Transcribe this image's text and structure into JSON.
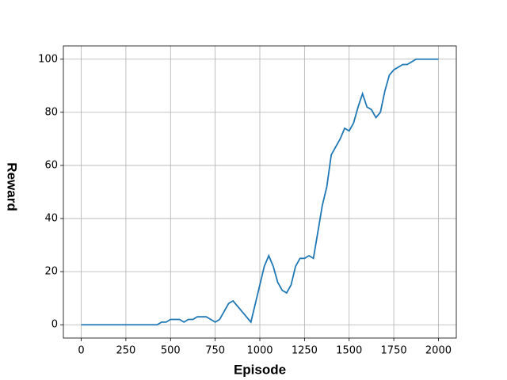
{
  "chart_data": {
    "type": "line",
    "xlabel": "Episode",
    "ylabel": "Reward",
    "x": [
      0,
      25,
      50,
      75,
      100,
      125,
      150,
      175,
      200,
      225,
      250,
      275,
      300,
      325,
      350,
      375,
      400,
      425,
      450,
      475,
      500,
      525,
      550,
      575,
      600,
      625,
      650,
      675,
      700,
      725,
      750,
      775,
      800,
      825,
      850,
      875,
      900,
      925,
      950,
      975,
      1000,
      1025,
      1050,
      1075,
      1100,
      1125,
      1150,
      1175,
      1200,
      1225,
      1250,
      1275,
      1300,
      1325,
      1350,
      1375,
      1400,
      1425,
      1450,
      1475,
      1500,
      1525,
      1550,
      1575,
      1600,
      1625,
      1650,
      1675,
      1700,
      1725,
      1750,
      1775,
      1800,
      1825,
      1850,
      1875,
      1900,
      1925,
      1950,
      1975,
      2000
    ],
    "values": [
      0,
      0,
      0,
      0,
      0,
      0,
      0,
      0,
      0,
      0,
      0,
      0,
      0,
      0,
      0,
      0,
      0,
      0,
      1,
      1,
      2,
      2,
      2,
      1,
      2,
      2,
      3,
      3,
      3,
      2,
      1,
      2,
      5,
      8,
      9,
      7,
      5,
      3,
      1,
      8,
      15,
      22,
      26,
      22,
      16,
      13,
      12,
      15,
      22,
      25,
      25,
      26,
      25,
      35,
      45,
      52,
      64,
      67,
      70,
      74,
      73,
      76,
      82,
      87,
      82,
      81,
      78,
      80,
      88,
      94,
      96,
      97,
      98,
      98,
      99,
      100,
      100,
      100,
      100,
      100,
      100
    ],
    "color": "#1f77b4",
    "xlim": [
      -100,
      2100
    ],
    "ylim": [
      -5,
      105
    ],
    "xticks": [
      0,
      250,
      500,
      750,
      1000,
      1250,
      1500,
      1750,
      2000
    ],
    "yticks": [
      0,
      20,
      40,
      60,
      80,
      100
    ],
    "grid": true
  }
}
